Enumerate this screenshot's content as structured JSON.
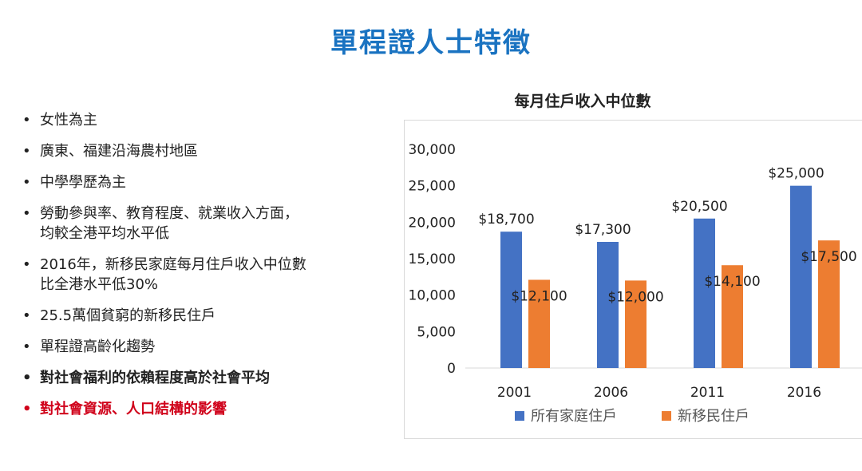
{
  "title": "單程證人士特徵",
  "bullets": [
    {
      "lines": [
        "女性為主"
      ],
      "style": "normal"
    },
    {
      "lines": [
        "廣東、福建沿海農村地區"
      ],
      "style": "normal"
    },
    {
      "lines": [
        "中學學歷為主"
      ],
      "style": "normal"
    },
    {
      "lines": [
        "勞動參與率、教育程度、就業收入方面，",
        "均較全港平均水平低"
      ],
      "style": "normal"
    },
    {
      "lines": [
        "2016年，新移民家庭每月住戶收入中位數",
        "比全港水平低30%"
      ],
      "style": "normal"
    },
    {
      "lines": [
        "25.5萬個貧窮的新移民住戶"
      ],
      "style": "normal"
    },
    {
      "lines": [
        "單程證高齡化趨勢"
      ],
      "style": "normal"
    },
    {
      "lines": [
        "對社會福利的依賴程度高於社會平均"
      ],
      "style": "bold"
    },
    {
      "lines": [
        "對社會資源、人口結構的影響"
      ],
      "style": "red"
    }
  ],
  "bullet_glyph": "•",
  "chart_data": {
    "type": "bar",
    "title": "每月住戶收入中位數",
    "categories": [
      "2001",
      "2006",
      "2011",
      "2016"
    ],
    "series": [
      {
        "name": "所有家庭住戶",
        "values": [
          18700,
          17300,
          20500,
          25000
        ],
        "labels": [
          "$18,700",
          "$17,300",
          "$20,500",
          "$25,000"
        ],
        "color": "#4472c4"
      },
      {
        "name": "新移民住戶",
        "values": [
          12100,
          12000,
          14100,
          17500
        ],
        "labels": [
          "$12,100",
          "$12,000",
          "$14,100",
          "$17,500"
        ],
        "color": "#ed7d31"
      }
    ],
    "ylim": [
      0,
      30000
    ],
    "yticks": [
      0,
      5000,
      10000,
      15000,
      20000,
      25000,
      30000
    ],
    "ytick_labels": [
      "0",
      "5,000",
      "10,000",
      "15,000",
      "20,000",
      "25,000",
      "30,000"
    ],
    "grid": false,
    "legend_position": "bottom"
  }
}
